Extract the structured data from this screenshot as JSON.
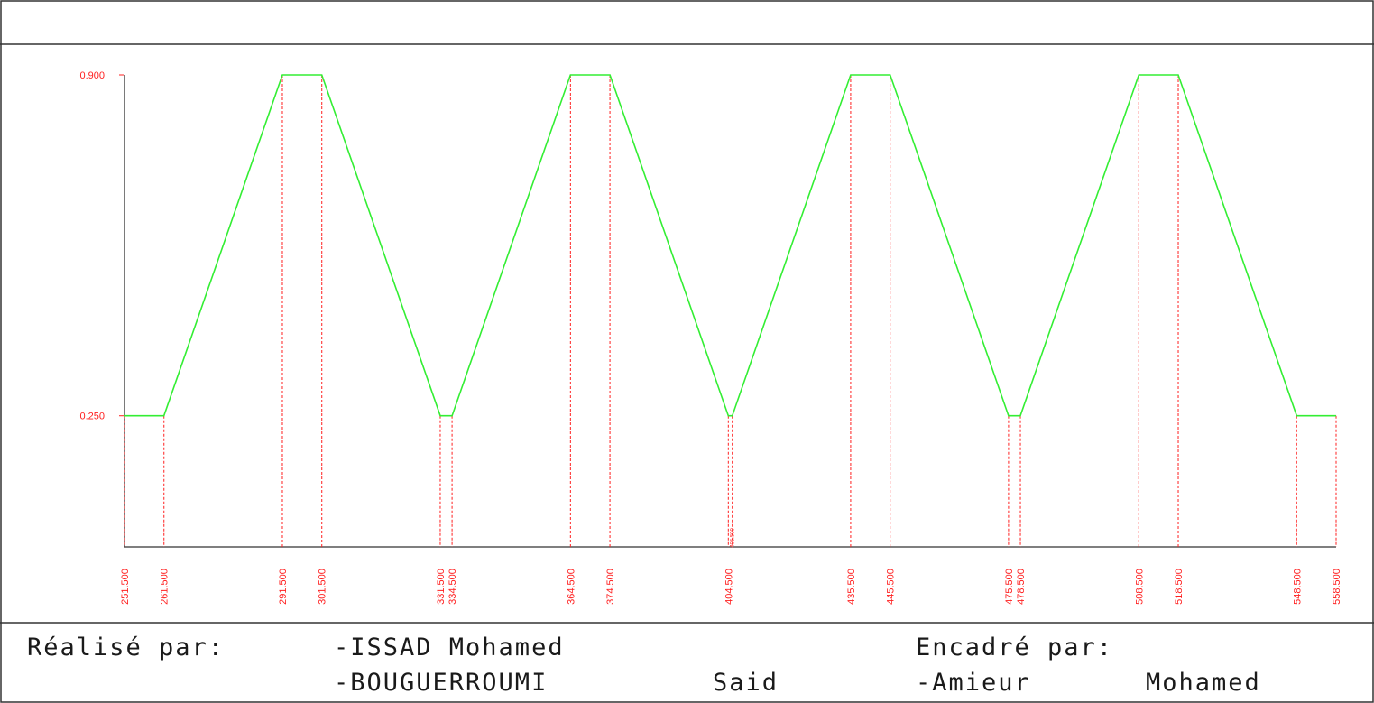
{
  "chart_data": {
    "type": "line",
    "x": [
      251.5,
      261.5,
      291.5,
      301.5,
      331.5,
      334.5,
      364.5,
      374.5,
      404.5,
      405.5,
      435.5,
      445.5,
      475.5,
      478.5,
      508.5,
      518.5,
      548.5,
      558.5
    ],
    "y": [
      0.25,
      0.25,
      0.9,
      0.9,
      0.25,
      0.25,
      0.9,
      0.9,
      0.25,
      0.25,
      0.9,
      0.9,
      0.25,
      0.25,
      0.9,
      0.9,
      0.25,
      0.25
    ],
    "x_tick_labels": [
      "251.500",
      "261.500",
      "291.500",
      "301.500",
      "331.500",
      "334.500",
      "364.500",
      "374.500",
      "404.500",
      "405.500",
      "435.500",
      "445.500",
      "475.500",
      "478.500",
      "508.500",
      "518.500",
      "548.500",
      "558.500"
    ],
    "y_tick_values": [
      0.9,
      0.25
    ],
    "y_tick_labels": [
      "0.900",
      "0.250"
    ],
    "xlim": [
      251.5,
      558.5
    ],
    "ylim": [
      0.0,
      0.9
    ],
    "title": "",
    "xlabel": "",
    "ylabel": "",
    "grid": false,
    "series_color": "#33ee33",
    "guide_color": "#ff2020"
  },
  "credits": {
    "made_by_label": "Réalisé par:",
    "author_1": "-ISSAD Mohamed",
    "author_2_first": "-BOUGUERROUMI",
    "author_2_last": "Said",
    "supervised_by_label": "Encadré par:",
    "supervisor_first": "-Amieur",
    "supervisor_last": "Mohamed"
  }
}
